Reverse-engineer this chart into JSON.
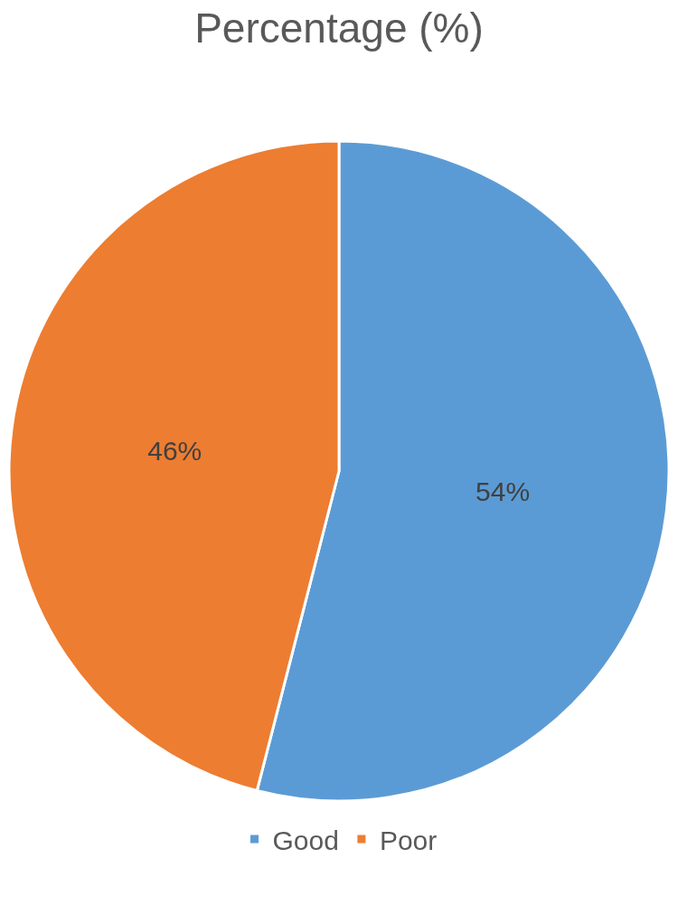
{
  "chart_data": {
    "type": "pie",
    "title": "Percentage (%)",
    "categories": [
      "Good",
      "Poor"
    ],
    "values": [
      54,
      46
    ],
    "colors": [
      "#5b9bd5",
      "#ed7d31"
    ],
    "value_labels": [
      "54%",
      "46%"
    ],
    "legend": "bottom"
  }
}
